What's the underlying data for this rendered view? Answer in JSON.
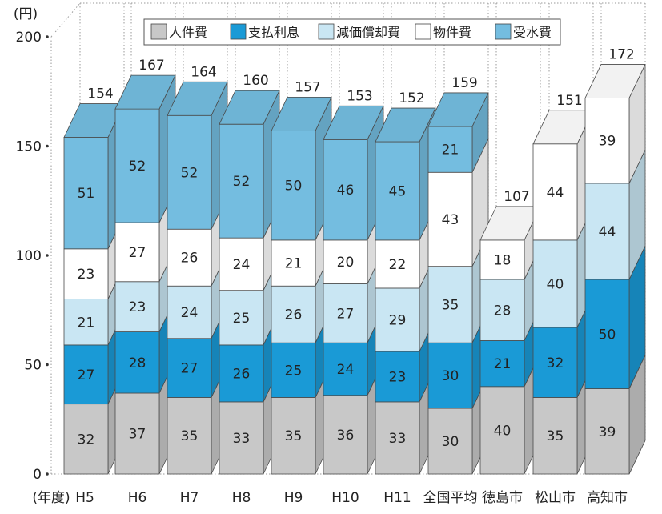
{
  "chart_data": {
    "type": "bar",
    "stacked": true,
    "y_unit_label": "(円)",
    "x_prefix_label": "(年度)",
    "ylim": [
      0,
      200
    ],
    "y_ticks": [
      "0",
      "50",
      "100",
      "150",
      "200"
    ],
    "categories": [
      "H5",
      "H6",
      "H7",
      "H8",
      "H9",
      "H10",
      "H11",
      "全国平均",
      "徳島市",
      "松山市",
      "高知市"
    ],
    "series": [
      {
        "name": "人件費",
        "color": "#c8c8c8",
        "values": [
          32,
          37,
          35,
          33,
          35,
          36,
          33,
          30,
          40,
          35,
          39
        ]
      },
      {
        "name": "支払利息",
        "color": "#1a9ad6",
        "values": [
          27,
          28,
          27,
          26,
          25,
          24,
          23,
          30,
          21,
          32,
          50
        ]
      },
      {
        "name": "減価償却費",
        "color": "#c9e6f3",
        "values": [
          21,
          23,
          24,
          25,
          26,
          27,
          29,
          35,
          28,
          40,
          44
        ]
      },
      {
        "name": "物件費",
        "color": "#ffffff",
        "values": [
          23,
          27,
          26,
          24,
          21,
          20,
          22,
          43,
          18,
          44,
          39
        ]
      },
      {
        "name": "受水費",
        "color": "#74bde0",
        "values": [
          51,
          52,
          52,
          52,
          50,
          46,
          45,
          21,
          0,
          0,
          0
        ]
      }
    ],
    "totals": [
      154,
      167,
      164,
      160,
      157,
      153,
      152,
      159,
      107,
      151,
      172
    ],
    "legend_position": "top"
  }
}
